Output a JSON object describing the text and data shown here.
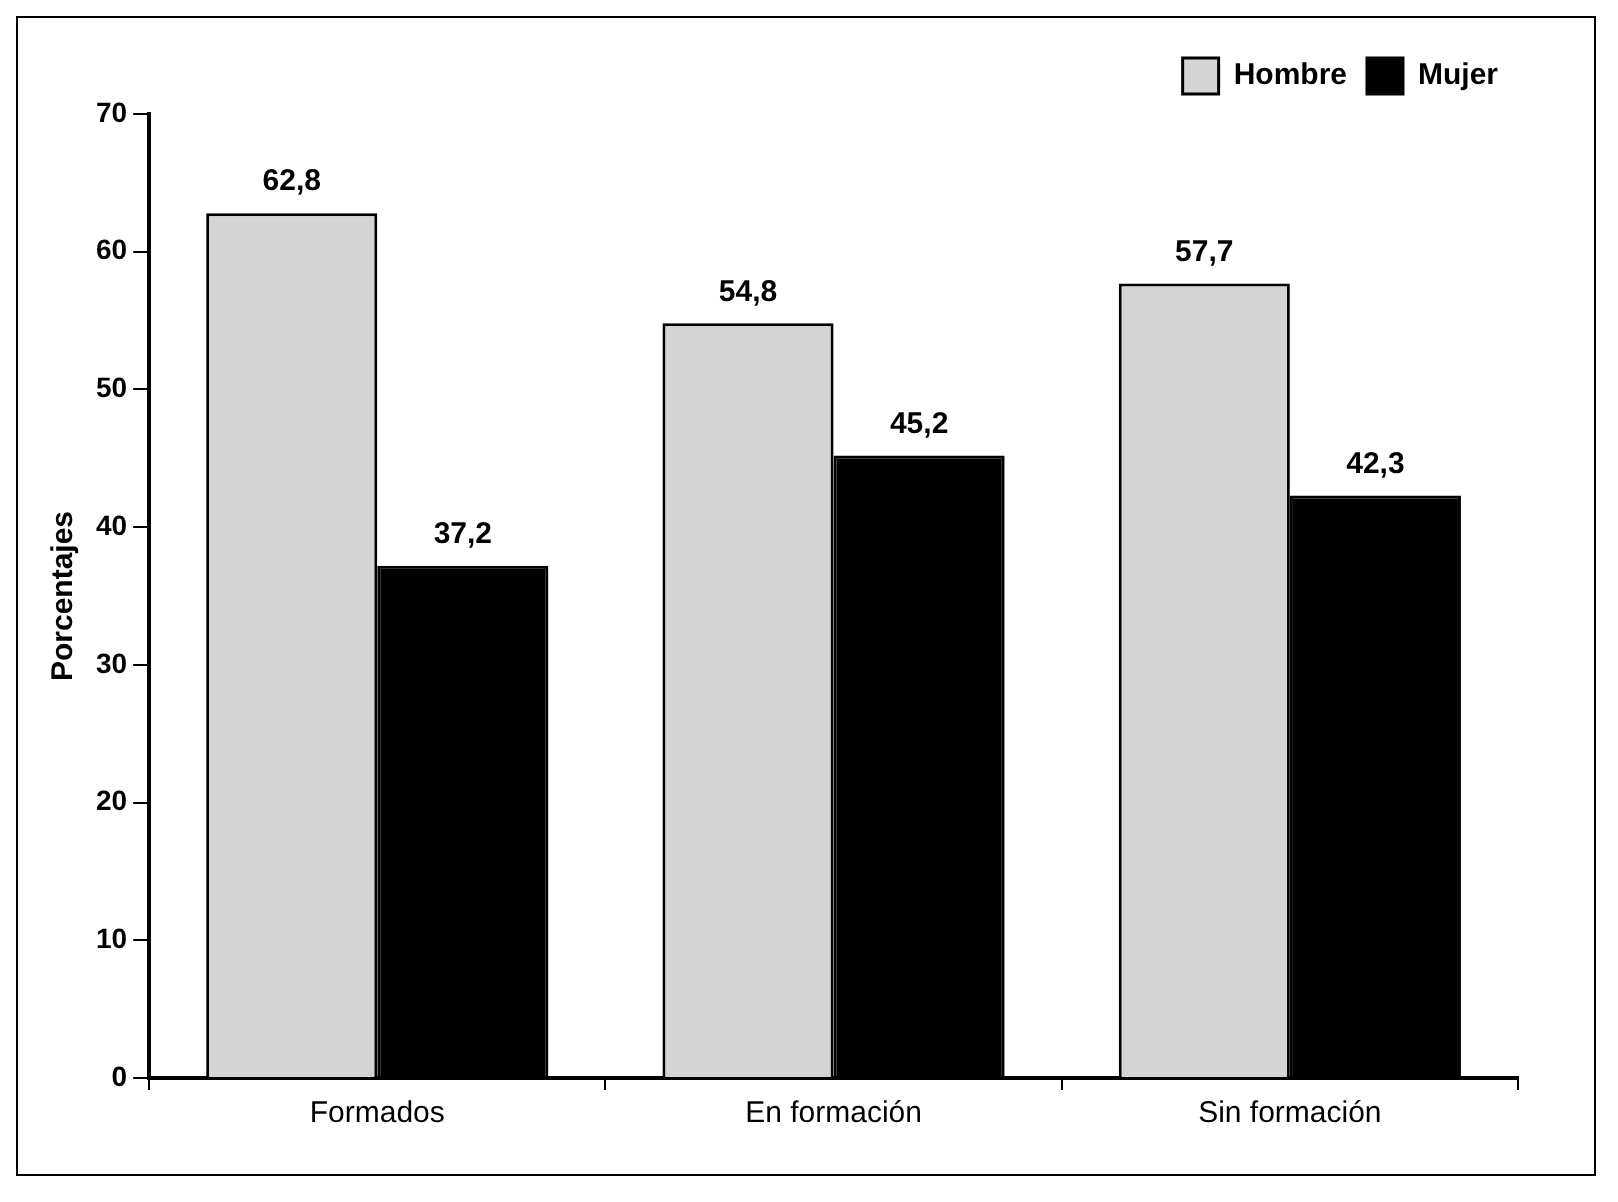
{
  "chart_data": {
    "type": "bar",
    "ylabel": "Porcentajes",
    "categories": [
      "Formados",
      "En formación",
      "Sin formación"
    ],
    "series": [
      {
        "name": "Hombre",
        "color": "#d4d4d4",
        "values": [
          62.8,
          54.8,
          57.7
        ],
        "value_labels": [
          "62,8",
          "54,8",
          "57,7"
        ]
      },
      {
        "name": "Mujer",
        "color": "#000000",
        "values": [
          37.2,
          45.2,
          42.3
        ],
        "value_labels": [
          "37,2",
          "45,2",
          "42,3"
        ]
      }
    ],
    "ylim": [
      0,
      70
    ],
    "yticks": [
      0,
      10,
      20,
      30,
      40,
      50,
      60,
      70
    ],
    "legend": "top right",
    "grid": false
  }
}
